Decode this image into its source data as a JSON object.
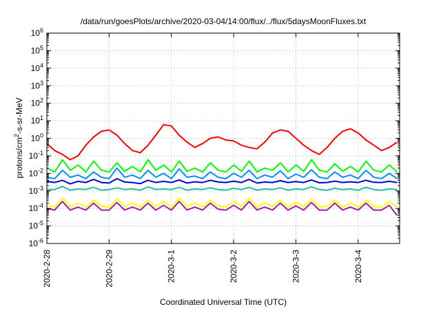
{
  "chart_data": {
    "type": "line",
    "title": "/data/run/goesPlots/archive/2020-03-04/14:00/flux/../flux/5daysMoonFluxes.txt",
    "xlabel": "Coordinated Universal Time (UTC)",
    "ylabel": {
      "prefix": "protons/cm",
      "sup": "2",
      "suffix": "-s-sr-MeV"
    },
    "xscale": "time",
    "yscale": "log",
    "xlim": [
      "2020-02-28",
      "2020-03-04T16:00"
    ],
    "ylim": [
      1e-06,
      1000000.0
    ],
    "grid": true,
    "x_ticks": [
      "2020-2-28",
      "2020-2-29",
      "2020-3-1",
      "2020-3-2",
      "2020-3-3",
      "2020-3-4"
    ],
    "y_ticks": [
      {
        "value": 1e-06,
        "base": "10",
        "exp": "-6"
      },
      {
        "value": 1e-05,
        "base": "10",
        "exp": "-5"
      },
      {
        "value": 0.0001,
        "base": "10",
        "exp": "-4"
      },
      {
        "value": 0.001,
        "base": "10",
        "exp": "-3"
      },
      {
        "value": 0.01,
        "base": "10",
        "exp": "-2"
      },
      {
        "value": 0.1,
        "base": "10",
        "exp": "-1"
      },
      {
        "value": 1,
        "base": "10",
        "exp": "0"
      },
      {
        "value": 10,
        "base": "10",
        "exp": "1"
      },
      {
        "value": 100,
        "base": "10",
        "exp": "2"
      },
      {
        "value": 1000,
        "base": "10",
        "exp": "3"
      },
      {
        "value": 10000,
        "base": "10",
        "exp": "4"
      },
      {
        "value": 100000,
        "base": "10",
        "exp": "5"
      },
      {
        "value": 1000000,
        "base": "10",
        "exp": "6"
      }
    ],
    "series": [
      {
        "color": "#ff0000",
        "x": [
          "2020-02-28T00:00",
          "2020-02-28T03:00",
          "2020-02-28T06:00",
          "2020-02-28T09:00",
          "2020-02-28T12:00",
          "2020-02-28T15:00",
          "2020-02-28T18:00",
          "2020-02-28T21:00",
          "2020-02-29T00:00",
          "2020-02-29T03:00",
          "2020-02-29T06:00",
          "2020-02-29T09:00",
          "2020-02-29T12:00",
          "2020-02-29T15:00",
          "2020-02-29T18:00",
          "2020-02-29T21:00",
          "2020-03-01T00:00",
          "2020-03-01T03:00",
          "2020-03-01T06:00",
          "2020-03-01T09:00",
          "2020-03-01T12:00",
          "2020-03-01T15:00",
          "2020-03-01T18:00",
          "2020-03-01T21:00",
          "2020-03-02T00:00",
          "2020-03-02T03:00",
          "2020-03-02T06:00",
          "2020-03-02T09:00",
          "2020-03-02T12:00",
          "2020-03-02T15:00",
          "2020-03-02T18:00",
          "2020-03-02T21:00",
          "2020-03-03T00:00",
          "2020-03-03T03:00",
          "2020-03-03T06:00",
          "2020-03-03T09:00",
          "2020-03-03T12:00",
          "2020-03-03T15:00",
          "2020-03-03T18:00",
          "2020-03-03T21:00",
          "2020-03-04T00:00",
          "2020-03-04T03:00",
          "2020-03-04T06:00",
          "2020-03-04T09:00",
          "2020-03-04T12:00",
          "2020-03-04T15:00"
        ],
        "values": [
          0.5,
          0.2,
          0.12,
          0.06,
          0.1,
          0.4,
          1.2,
          2.5,
          3.0,
          1.5,
          0.5,
          0.2,
          0.15,
          0.4,
          1.5,
          6.0,
          5.0,
          1.5,
          0.6,
          0.3,
          0.5,
          1.0,
          1.2,
          0.8,
          0.7,
          0.4,
          0.3,
          0.25,
          0.6,
          2.0,
          3.0,
          2.5,
          1.0,
          0.4,
          0.2,
          0.12,
          0.3,
          1.0,
          2.5,
          3.5,
          2.0,
          0.8,
          0.4,
          0.2,
          0.3,
          0.6
        ]
      },
      {
        "color": "#00ff00",
        "x": [
          "2020-02-28T00:00",
          "2020-02-28T03:00",
          "2020-02-28T06:00",
          "2020-02-28T09:00",
          "2020-02-28T12:00",
          "2020-02-28T15:00",
          "2020-02-28T18:00",
          "2020-02-28T21:00",
          "2020-02-29T00:00",
          "2020-02-29T03:00",
          "2020-02-29T06:00",
          "2020-02-29T09:00",
          "2020-02-29T12:00",
          "2020-02-29T15:00",
          "2020-02-29T18:00",
          "2020-02-29T21:00",
          "2020-03-01T00:00",
          "2020-03-01T03:00",
          "2020-03-01T06:00",
          "2020-03-01T09:00",
          "2020-03-01T12:00",
          "2020-03-01T15:00",
          "2020-03-01T18:00",
          "2020-03-01T21:00",
          "2020-03-02T00:00",
          "2020-03-02T03:00",
          "2020-03-02T06:00",
          "2020-03-02T09:00",
          "2020-03-02T12:00",
          "2020-03-02T15:00",
          "2020-03-02T18:00",
          "2020-03-02T21:00",
          "2020-03-03T00:00",
          "2020-03-03T03:00",
          "2020-03-03T06:00",
          "2020-03-03T09:00",
          "2020-03-03T12:00",
          "2020-03-03T15:00",
          "2020-03-03T18:00",
          "2020-03-03T21:00",
          "2020-03-04T00:00",
          "2020-03-04T03:00",
          "2020-03-04T06:00",
          "2020-03-04T09:00",
          "2020-03-04T12:00",
          "2020-03-04T15:00"
        ],
        "values": [
          0.02,
          0.012,
          0.06,
          0.015,
          0.03,
          0.012,
          0.05,
          0.015,
          0.012,
          0.04,
          0.013,
          0.025,
          0.012,
          0.06,
          0.015,
          0.03,
          0.012,
          0.05,
          0.013,
          0.02,
          0.012,
          0.04,
          0.015,
          0.012,
          0.03,
          0.013,
          0.05,
          0.012,
          0.02,
          0.015,
          0.04,
          0.012,
          0.03,
          0.013,
          0.06,
          0.015,
          0.012,
          0.035,
          0.013,
          0.025,
          0.012,
          0.05,
          0.015,
          0.012,
          0.03,
          0.012
        ]
      },
      {
        "color": "#0090ff",
        "x": [
          "2020-02-28T00:00",
          "2020-02-28T03:00",
          "2020-02-28T06:00",
          "2020-02-28T09:00",
          "2020-02-28T12:00",
          "2020-02-28T15:00",
          "2020-02-28T18:00",
          "2020-02-28T21:00",
          "2020-02-29T00:00",
          "2020-02-29T03:00",
          "2020-02-29T06:00",
          "2020-02-29T09:00",
          "2020-02-29T12:00",
          "2020-02-29T15:00",
          "2020-02-29T18:00",
          "2020-02-29T21:00",
          "2020-03-01T00:00",
          "2020-03-01T03:00",
          "2020-03-01T06:00",
          "2020-03-01T09:00",
          "2020-03-01T12:00",
          "2020-03-01T15:00",
          "2020-03-01T18:00",
          "2020-03-01T21:00",
          "2020-03-02T00:00",
          "2020-03-02T03:00",
          "2020-03-02T06:00",
          "2020-03-02T09:00",
          "2020-03-02T12:00",
          "2020-03-02T15:00",
          "2020-03-02T18:00",
          "2020-03-02T21:00",
          "2020-03-03T00:00",
          "2020-03-03T03:00",
          "2020-03-03T06:00",
          "2020-03-03T09:00",
          "2020-03-03T12:00",
          "2020-03-03T15:00",
          "2020-03-03T18:00",
          "2020-03-03T21:00",
          "2020-03-04T00:00",
          "2020-03-04T03:00",
          "2020-03-04T06:00",
          "2020-03-04T09:00",
          "2020-03-04T12:00",
          "2020-03-04T15:00"
        ],
        "values": [
          0.006,
          0.005,
          0.015,
          0.006,
          0.008,
          0.005,
          0.012,
          0.006,
          0.005,
          0.02,
          0.006,
          0.008,
          0.005,
          0.015,
          0.006,
          0.01,
          0.005,
          0.018,
          0.006,
          0.007,
          0.005,
          0.012,
          0.006,
          0.005,
          0.01,
          0.006,
          0.015,
          0.005,
          0.008,
          0.006,
          0.014,
          0.005,
          0.009,
          0.006,
          0.016,
          0.006,
          0.005,
          0.012,
          0.006,
          0.008,
          0.005,
          0.015,
          0.006,
          0.005,
          0.01,
          0.005
        ]
      },
      {
        "color": "#0000dd",
        "x": [
          "2020-02-28T00:00",
          "2020-02-28T03:00",
          "2020-02-28T06:00",
          "2020-02-28T09:00",
          "2020-02-28T12:00",
          "2020-02-28T15:00",
          "2020-02-28T18:00",
          "2020-02-28T21:00",
          "2020-02-29T00:00",
          "2020-02-29T03:00",
          "2020-02-29T06:00",
          "2020-02-29T09:00",
          "2020-02-29T12:00",
          "2020-02-29T15:00",
          "2020-02-29T18:00",
          "2020-02-29T21:00",
          "2020-03-01T00:00",
          "2020-03-01T03:00",
          "2020-03-01T06:00",
          "2020-03-01T09:00",
          "2020-03-01T12:00",
          "2020-03-01T15:00",
          "2020-03-01T18:00",
          "2020-03-01T21:00",
          "2020-03-02T00:00",
          "2020-03-02T03:00",
          "2020-03-02T06:00",
          "2020-03-02T09:00",
          "2020-03-02T12:00",
          "2020-03-02T15:00",
          "2020-03-02T18:00",
          "2020-03-02T21:00",
          "2020-03-03T00:00",
          "2020-03-03T03:00",
          "2020-03-03T06:00",
          "2020-03-03T09:00",
          "2020-03-03T12:00",
          "2020-03-03T15:00",
          "2020-03-03T18:00",
          "2020-03-03T21:00",
          "2020-03-04T00:00",
          "2020-03-04T03:00",
          "2020-03-04T06:00",
          "2020-03-04T09:00",
          "2020-03-04T12:00",
          "2020-03-04T15:00"
        ],
        "values": [
          0.0035,
          0.003,
          0.004,
          0.0025,
          0.0035,
          0.003,
          0.0045,
          0.003,
          0.0028,
          0.005,
          0.0032,
          0.003,
          0.0026,
          0.004,
          0.003,
          0.0035,
          0.003,
          0.0042,
          0.0028,
          0.0033,
          0.003,
          0.004,
          0.0032,
          0.003,
          0.0036,
          0.003,
          0.0045,
          0.0028,
          0.0032,
          0.003,
          0.0038,
          0.003,
          0.0034,
          0.003,
          0.0042,
          0.0029,
          0.003,
          0.0036,
          0.003,
          0.0033,
          0.003,
          0.004,
          0.0031,
          0.003,
          0.0035,
          0.003
        ]
      },
      {
        "color": "#20c0a0",
        "x": [
          "2020-02-28T00:00",
          "2020-02-28T03:00",
          "2020-02-28T06:00",
          "2020-02-28T09:00",
          "2020-02-28T12:00",
          "2020-02-28T15:00",
          "2020-02-28T18:00",
          "2020-02-28T21:00",
          "2020-02-29T00:00",
          "2020-02-29T03:00",
          "2020-02-29T06:00",
          "2020-02-29T09:00",
          "2020-02-29T12:00",
          "2020-02-29T15:00",
          "2020-02-29T18:00",
          "2020-02-29T21:00",
          "2020-03-01T00:00",
          "2020-03-01T03:00",
          "2020-03-01T06:00",
          "2020-03-01T09:00",
          "2020-03-01T12:00",
          "2020-03-01T15:00",
          "2020-03-01T18:00",
          "2020-03-01T21:00",
          "2020-03-02T00:00",
          "2020-03-02T03:00",
          "2020-03-02T06:00",
          "2020-03-02T09:00",
          "2020-03-02T12:00",
          "2020-03-02T15:00",
          "2020-03-02T18:00",
          "2020-03-02T21:00",
          "2020-03-03T00:00",
          "2020-03-03T03:00",
          "2020-03-03T06:00",
          "2020-03-03T09:00",
          "2020-03-03T12:00",
          "2020-03-03T15:00",
          "2020-03-03T18:00",
          "2020-03-03T21:00",
          "2020-03-04T00:00",
          "2020-03-04T03:00",
          "2020-03-04T06:00",
          "2020-03-04T09:00",
          "2020-03-04T12:00",
          "2020-03-04T15:00"
        ],
        "values": [
          0.0012,
          0.0012,
          0.0018,
          0.0011,
          0.0013,
          0.0012,
          0.0016,
          0.0011,
          0.0012,
          0.0015,
          0.0012,
          0.0013,
          0.0011,
          0.0017,
          0.0012,
          0.0013,
          0.0012,
          0.0016,
          0.0011,
          0.0013,
          0.0012,
          0.0015,
          0.0012,
          0.0011,
          0.0014,
          0.0012,
          0.0016,
          0.0011,
          0.0013,
          0.0012,
          0.0015,
          0.0011,
          0.0013,
          0.0012,
          0.0017,
          0.0012,
          0.0011,
          0.0014,
          0.0012,
          0.0013,
          0.0011,
          0.0016,
          0.0012,
          0.0011,
          0.0013,
          0.0012
        ]
      },
      {
        "color": "#ffff00",
        "x": [
          "2020-02-28T00:00",
          "2020-02-28T03:00",
          "2020-02-28T06:00",
          "2020-02-28T09:00",
          "2020-02-28T12:00",
          "2020-02-28T15:00",
          "2020-02-28T18:00",
          "2020-02-28T21:00",
          "2020-02-29T00:00",
          "2020-02-29T03:00",
          "2020-02-29T06:00",
          "2020-02-29T09:00",
          "2020-02-29T12:00",
          "2020-02-29T15:00",
          "2020-02-29T18:00",
          "2020-02-29T21:00",
          "2020-03-01T00:00",
          "2020-03-01T03:00",
          "2020-03-01T06:00",
          "2020-03-01T09:00",
          "2020-03-01T12:00",
          "2020-03-01T15:00",
          "2020-03-01T18:00",
          "2020-03-01T21:00",
          "2020-03-02T00:00",
          "2020-03-02T03:00",
          "2020-03-02T06:00",
          "2020-03-02T09:00",
          "2020-03-02T12:00",
          "2020-03-02T15:00",
          "2020-03-02T18:00",
          "2020-03-02T21:00",
          "2020-03-03T00:00",
          "2020-03-03T03:00",
          "2020-03-03T06:00",
          "2020-03-03T09:00",
          "2020-03-03T12:00",
          "2020-03-03T15:00",
          "2020-03-03T18:00",
          "2020-03-03T21:00",
          "2020-03-04T00:00",
          "2020-03-04T03:00",
          "2020-03-04T06:00",
          "2020-03-04T09:00",
          "2020-03-04T12:00",
          "2020-03-04T15:00"
        ],
        "values": [
          0.00015,
          0.00012,
          0.0004,
          0.00013,
          0.0002,
          0.00012,
          0.0003,
          0.00013,
          0.00012,
          0.00035,
          0.00013,
          0.0002,
          0.00012,
          0.0003,
          0.00013,
          0.00025,
          0.00012,
          0.0004,
          0.00013,
          0.0002,
          0.00012,
          0.0003,
          0.00014,
          0.00012,
          0.00025,
          0.00013,
          0.0004,
          0.00012,
          0.0002,
          0.00013,
          0.0003,
          0.00012,
          0.00022,
          0.00013,
          0.00035,
          0.00012,
          0.00013,
          0.0003,
          0.00012,
          0.0002,
          0.00012,
          0.0003,
          0.00013,
          0.00012,
          0.00025,
          0.00012
        ]
      },
      {
        "color": "#a020a0",
        "x": [
          "2020-02-28T00:00",
          "2020-02-28T03:00",
          "2020-02-28T06:00",
          "2020-02-28T09:00",
          "2020-02-28T12:00",
          "2020-02-28T15:00",
          "2020-02-28T18:00",
          "2020-02-28T21:00",
          "2020-02-29T00:00",
          "2020-02-29T03:00",
          "2020-02-29T06:00",
          "2020-02-29T09:00",
          "2020-02-29T12:00",
          "2020-02-29T15:00",
          "2020-02-29T18:00",
          "2020-02-29T21:00",
          "2020-03-01T00:00",
          "2020-03-01T03:00",
          "2020-03-01T06:00",
          "2020-03-01T09:00",
          "2020-03-01T12:00",
          "2020-03-01T15:00",
          "2020-03-01T18:00",
          "2020-03-01T21:00",
          "2020-03-02T00:00",
          "2020-03-02T03:00",
          "2020-03-02T06:00",
          "2020-03-02T09:00",
          "2020-03-02T12:00",
          "2020-03-02T15:00",
          "2020-03-02T18:00",
          "2020-03-02T21:00",
          "2020-03-03T00:00",
          "2020-03-03T03:00",
          "2020-03-03T06:00",
          "2020-03-03T09:00",
          "2020-03-03T12:00",
          "2020-03-03T15:00",
          "2020-03-03T18:00",
          "2020-03-03T21:00",
          "2020-03-04T00:00",
          "2020-03-04T03:00",
          "2020-03-04T06:00",
          "2020-03-04T09:00",
          "2020-03-04T12:00",
          "2020-03-04T15:00"
        ],
        "values": [
          0.0001,
          8e-05,
          0.00025,
          8e-05,
          0.00012,
          8e-05,
          0.0002,
          8e-05,
          8e-05,
          0.00022,
          8e-05,
          0.00012,
          8e-05,
          0.0002,
          8e-05,
          0.00015,
          8e-05,
          0.00025,
          8e-05,
          0.00012,
          8e-05,
          0.0002,
          9e-05,
          8e-05,
          0.00015,
          8e-05,
          0.00025,
          8e-05,
          0.00012,
          8e-05,
          0.0002,
          8e-05,
          0.00014,
          8e-05,
          0.00022,
          8e-05,
          8e-05,
          0.0002,
          8e-05,
          0.00012,
          8e-05,
          0.0002,
          8e-05,
          8e-05,
          0.00015,
          4e-05
        ]
      }
    ]
  }
}
